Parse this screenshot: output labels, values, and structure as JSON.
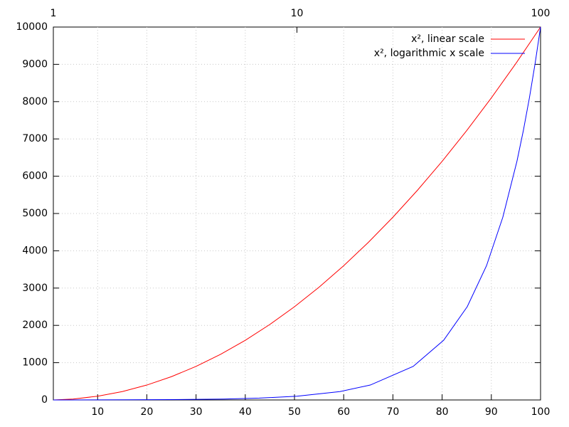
{
  "chart_data": {
    "type": "line",
    "xlim": [
      1,
      100
    ],
    "xticks": [
      10,
      20,
      30,
      40,
      50,
      60,
      70,
      80,
      90,
      100
    ],
    "x2lim": [
      1,
      100
    ],
    "x2ticks": [
      1,
      10,
      100
    ],
    "x2log": true,
    "ylim": [
      0,
      10000
    ],
    "yticks": [
      0,
      1000,
      2000,
      3000,
      4000,
      5000,
      6000,
      7000,
      8000,
      9000,
      10000
    ],
    "grid": true,
    "legend": "upper-right",
    "series": [
      {
        "name": "x², linear scale",
        "color": "#ff0000",
        "x": [
          1,
          5,
          10,
          15,
          20,
          25,
          30,
          35,
          40,
          45,
          50,
          55,
          60,
          65,
          70,
          75,
          80,
          85,
          90,
          95,
          100
        ],
        "values": [
          1,
          25,
          100,
          225,
          400,
          625,
          900,
          1225,
          1600,
          2025,
          2500,
          3025,
          3600,
          4225,
          4900,
          5625,
          6400,
          7225,
          8100,
          9025,
          10000
        ]
      },
      {
        "name": "x², logarithmic x scale",
        "color": "#0000ff",
        "axis": "x2",
        "x": [
          1,
          2,
          3,
          5,
          7,
          10,
          15,
          20,
          30,
          40,
          50,
          60,
          70,
          80,
          85,
          90,
          95,
          100
        ],
        "values": [
          1,
          4,
          9,
          25,
          49,
          100,
          225,
          400,
          900,
          1600,
          2500,
          3600,
          4900,
          6400,
          7225,
          8100,
          9025,
          10000
        ]
      }
    ]
  }
}
